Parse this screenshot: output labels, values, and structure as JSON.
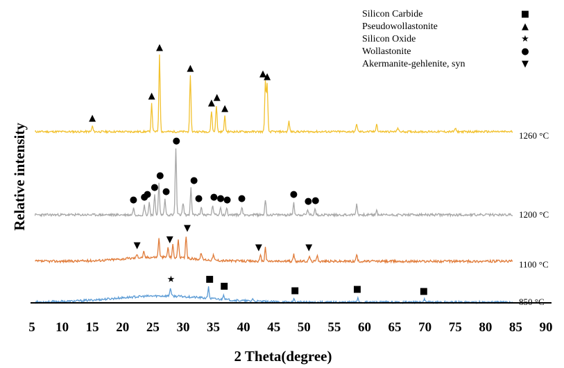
{
  "chart_data": {
    "type": "line",
    "title": "",
    "xlabel": "2 Theta(degree)",
    "ylabel": "Relative intensity",
    "xlim": [
      5,
      90
    ],
    "xticks": [
      "5",
      "10",
      "15",
      "20",
      "25",
      "30",
      "35",
      "40",
      "45",
      "50",
      "55",
      "60",
      "65",
      "70",
      "75",
      "80",
      "85",
      "90"
    ],
    "legend_position": "top-right",
    "legend": [
      {
        "name": "Silicon Carbide",
        "symbol": "■",
        "key": "sic"
      },
      {
        "name": "Pseudowollastonite",
        "symbol": "▲",
        "key": "pw"
      },
      {
        "name": "Silicon Oxide",
        "symbol": "★",
        "key": "sio2"
      },
      {
        "name": "Wollastonite",
        "symbol": "●",
        "key": "w"
      },
      {
        "name": "Akermanite-gehlenite, syn",
        "symbol": "▼",
        "key": "ag"
      }
    ],
    "series": [
      {
        "name": "1260 °C",
        "color": "#f2c12e",
        "noise": 1.5,
        "seed": 11,
        "hump": [],
        "peaks": [
          [
            15.0,
            8
          ],
          [
            24.8,
            40
          ],
          [
            26.1,
            110
          ],
          [
            31.2,
            80
          ],
          [
            34.7,
            30
          ],
          [
            35.5,
            38
          ],
          [
            36.9,
            22
          ],
          [
            43.6,
            72
          ],
          [
            43.9,
            68
          ],
          [
            47.5,
            15
          ],
          [
            58.7,
            12
          ],
          [
            62.0,
            12
          ],
          [
            65.5,
            6
          ],
          [
            75.0,
            5
          ]
        ],
        "markers": [
          [
            15.0,
            "pw"
          ],
          [
            24.8,
            "pw"
          ],
          [
            26.1,
            "pw"
          ],
          [
            31.2,
            "pw"
          ],
          [
            34.7,
            "pw"
          ],
          [
            35.6,
            "pw"
          ],
          [
            36.9,
            "pw"
          ],
          [
            43.2,
            "pw"
          ],
          [
            43.9,
            "pw"
          ]
        ]
      },
      {
        "name": "1200 °C",
        "color": "#a6a6a6",
        "noise": 1.8,
        "seed": 23,
        "hump": [],
        "peaks": [
          [
            21.8,
            10
          ],
          [
            23.6,
            14
          ],
          [
            24.4,
            18
          ],
          [
            25.3,
            28
          ],
          [
            26.0,
            45
          ],
          [
            27.0,
            22
          ],
          [
            28.8,
            95
          ],
          [
            30.0,
            18
          ],
          [
            31.3,
            38
          ],
          [
            33.0,
            12
          ],
          [
            34.9,
            14
          ],
          [
            36.2,
            12
          ],
          [
            37.2,
            10
          ],
          [
            39.7,
            12
          ],
          [
            43.6,
            22
          ],
          [
            48.3,
            18
          ],
          [
            50.6,
            8
          ],
          [
            51.8,
            9
          ],
          [
            58.7,
            16
          ],
          [
            62.0,
            6
          ]
        ],
        "markers": [
          [
            21.8,
            "w"
          ],
          [
            23.6,
            "w"
          ],
          [
            24.1,
            "w"
          ],
          [
            25.3,
            "w"
          ],
          [
            26.2,
            "w"
          ],
          [
            27.2,
            "w"
          ],
          [
            28.9,
            "w"
          ],
          [
            31.8,
            "w"
          ],
          [
            32.6,
            "w"
          ],
          [
            35.1,
            "w"
          ],
          [
            36.2,
            "w"
          ],
          [
            37.3,
            "w"
          ],
          [
            39.7,
            "w"
          ],
          [
            48.3,
            "w"
          ],
          [
            50.7,
            "w"
          ],
          [
            51.9,
            "w"
          ]
        ]
      },
      {
        "name": "1100 °C",
        "color": "#e07b39",
        "noise": 1.8,
        "seed": 37,
        "hump": [
          26,
          6,
          8
        ],
        "peaks": [
          [
            22.4,
            6
          ],
          [
            23.5,
            8
          ],
          [
            26.0,
            28
          ],
          [
            27.5,
            14
          ],
          [
            28.3,
            18
          ],
          [
            29.2,
            28
          ],
          [
            30.5,
            32
          ],
          [
            33.0,
            10
          ],
          [
            35.0,
            8
          ],
          [
            42.8,
            8
          ],
          [
            43.6,
            20
          ],
          [
            48.3,
            10
          ],
          [
            50.9,
            8
          ],
          [
            52.2,
            10
          ],
          [
            58.7,
            10
          ]
        ],
        "markers": [
          [
            22.4,
            "ag"
          ],
          [
            27.8,
            "ag"
          ],
          [
            30.7,
            "ag"
          ],
          [
            42.5,
            "ag"
          ],
          [
            50.8,
            "ag"
          ]
        ]
      },
      {
        "name": "850 °C",
        "color": "#5b9bd5",
        "noise": 1.6,
        "seed": 53,
        "hump": [
          26.5,
          9,
          11
        ],
        "peaks": [
          [
            27.9,
            12
          ],
          [
            34.2,
            16
          ],
          [
            36.7,
            8
          ],
          [
            41.5,
            4
          ],
          [
            48.3,
            5
          ],
          [
            58.9,
            7
          ],
          [
            69.9,
            4
          ]
        ],
        "markers": [
          [
            28.0,
            "sio2"
          ],
          [
            34.4,
            "sic"
          ],
          [
            36.8,
            "sic"
          ],
          [
            48.5,
            "sic"
          ],
          [
            58.8,
            "sic"
          ],
          [
            69.8,
            "sic"
          ]
        ]
      }
    ]
  }
}
